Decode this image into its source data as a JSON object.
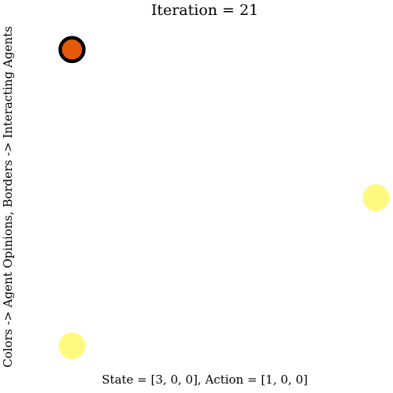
{
  "chart_data": {
    "type": "scatter",
    "title": "Iteration = 21",
    "xlabel": "State = [3, 0, 0], Action = [1, 0, 0]",
    "ylabel": "Colors -> Agent Opinions, Borders -> Interacting Agents",
    "xlim": [
      0,
      1
    ],
    "ylim": [
      0,
      1
    ],
    "grid": false,
    "axes_visible": false,
    "points": [
      {
        "x": 0.05,
        "y": 0.95,
        "color": "#e55a0a",
        "border": true
      },
      {
        "x": 0.95,
        "y": 0.5,
        "color": "#fff86a",
        "border": false
      },
      {
        "x": 0.05,
        "y": 0.05,
        "color": "#fff86a",
        "border": false
      }
    ],
    "border_color": "#000000"
  }
}
